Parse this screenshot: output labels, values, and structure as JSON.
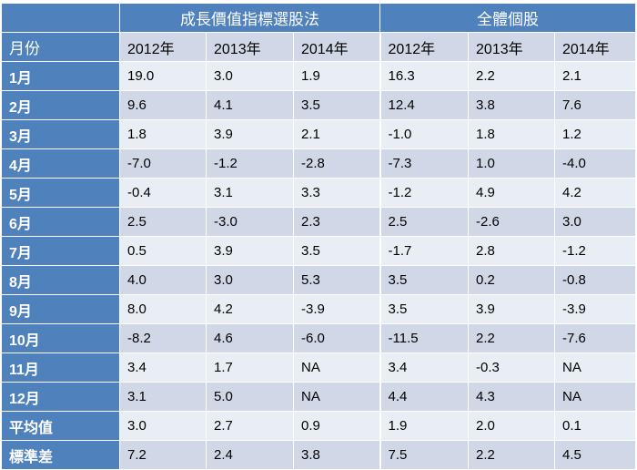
{
  "table": {
    "groups": [
      "成長價值指標選股法",
      "全體個股"
    ],
    "row_header_label": "月份",
    "years": [
      "2012年",
      "2013年",
      "2014年",
      "2012年",
      "2013年",
      "2014年"
    ],
    "rows": [
      {
        "label": "1月",
        "values": [
          "19.0",
          "3.0",
          "1.9",
          "16.3",
          "2.2",
          "2.1"
        ]
      },
      {
        "label": "2月",
        "values": [
          "9.6",
          "4.1",
          "3.5",
          "12.4",
          "3.8",
          "7.6"
        ]
      },
      {
        "label": "3月",
        "values": [
          "1.8",
          "3.9",
          "2.1",
          "-1.0",
          "1.8",
          "1.2"
        ]
      },
      {
        "label": "4月",
        "values": [
          "-7.0",
          "-1.2",
          "-2.8",
          "-7.3",
          "1.0",
          "-4.0"
        ]
      },
      {
        "label": "5月",
        "values": [
          "-0.4",
          "3.1",
          "3.3",
          "-1.2",
          "4.9",
          "4.2"
        ]
      },
      {
        "label": "6月",
        "values": [
          "2.5",
          "-3.0",
          "2.3",
          "2.5",
          "-2.6",
          "3.0"
        ]
      },
      {
        "label": "7月",
        "values": [
          "0.5",
          "3.9",
          "3.5",
          "-1.7",
          "2.8",
          "-1.2"
        ]
      },
      {
        "label": "8月",
        "values": [
          "4.0",
          "3.0",
          "5.3",
          "3.5",
          "0.2",
          "-0.8"
        ]
      },
      {
        "label": "9月",
        "values": [
          "8.0",
          "4.2",
          "-3.9",
          "3.5",
          "3.9",
          "-3.9"
        ]
      },
      {
        "label": "10月",
        "values": [
          "-8.2",
          "4.6",
          "-6.0",
          "-11.5",
          "2.2",
          "-7.6"
        ]
      },
      {
        "label": "11月",
        "values": [
          "3.4",
          "1.7",
          "NA",
          "3.4",
          "-0.3",
          "NA"
        ]
      },
      {
        "label": "12月",
        "values": [
          "3.1",
          "5.0",
          "NA",
          "4.4",
          "4.3",
          "NA"
        ]
      },
      {
        "label": "平均值",
        "values": [
          "3.0",
          "2.7",
          "0.9",
          "1.9",
          "2.0",
          "0.1"
        ]
      },
      {
        "label": "標準差",
        "values": [
          "7.2",
          "2.4",
          "3.8",
          "7.5",
          "2.2",
          "4.5"
        ]
      }
    ]
  }
}
